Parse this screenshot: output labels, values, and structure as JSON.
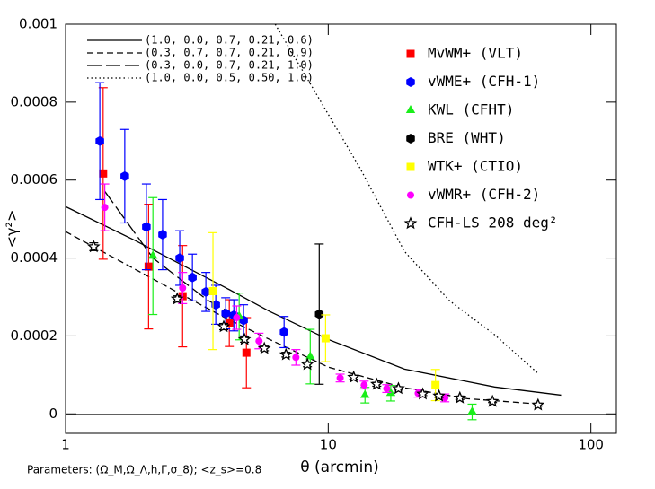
{
  "chart_data": {
    "type": "scatter",
    "x_label": "θ (arcmin)",
    "y_label": "<γ²>",
    "note": "Parameters: (Ω_M,Ω_Λ,h,Γ,σ_8); <z_s>=0.8",
    "xscale": "log",
    "xlim": [
      1,
      125
    ],
    "xticks": [
      1,
      10,
      100
    ],
    "ylim": [
      -5e-05,
      0.001
    ],
    "yticks": [
      0,
      0.0002,
      0.0004,
      0.0006,
      0.0008,
      0.001
    ],
    "models": [
      {
        "name": "(1.0, 0.0, 0.7, 0.21, 0.6)",
        "dash": "solid",
        "x": [
          1,
          1.84,
          4.04,
          5.98,
          10,
          19.5,
          43,
          77
        ],
        "values": [
          0.000532,
          0.000445,
          0.000325,
          0.000263,
          0.000191,
          0.000115,
          6.9e-05,
          4.8e-05
        ]
      },
      {
        "name": "(0.3, 0.7, 0.7, 0.21, 0.9)",
        "dash": "short",
        "x": [
          1,
          1.84,
          2.72,
          4.04,
          5.98,
          10,
          19.5,
          33.9,
          64
        ],
        "values": [
          0.000468,
          0.000371,
          0.000309,
          0.000247,
          0.000191,
          0.00012,
          6.7e-05,
          3.9e-05,
          2.5e-05
        ]
      },
      {
        "name": "(0.3, 0.0, 0.7, 0.21, 1.0)",
        "dash": "long",
        "x": [
          1.41,
          2.15,
          3.45,
          4.73
        ],
        "values": [
          0.000571,
          0.0004,
          0.000293,
          0.000242
        ]
      },
      {
        "name": "(1.0, 0.0, 0.5, 0.50, 1.0)",
        "dash": "dotted",
        "x": [
          6.28,
          13.2,
          19.5,
          29,
          43,
          62.9
        ],
        "values": [
          0.001,
          0.000631,
          0.000417,
          0.00029,
          0.000203,
          0.000104
        ]
      }
    ],
    "series": [
      {
        "name": "MvWM+ (VLT)",
        "color": "#ff0000",
        "marker": "square",
        "x": [
          1.39,
          2.07,
          2.79,
          4.2,
          4.88
        ],
        "values": [
          0.000617,
          0.000378,
          0.000302,
          0.000233,
          0.000157
        ],
        "errors": [
          0.00022,
          0.00016,
          0.00013,
          6e-05,
          9e-05
        ]
      },
      {
        "name": "vWME+ (CFH-1)",
        "color": "#0000ff",
        "marker": "hexagon",
        "x": [
          1.35,
          1.68,
          2.03,
          2.34,
          2.72,
          3.04,
          3.42,
          3.73,
          4.07,
          4.37,
          4.76,
          6.79
        ],
        "values": [
          0.0007,
          0.00061,
          0.00048,
          0.00046,
          0.0004,
          0.00035,
          0.000313,
          0.00028,
          0.000258,
          0.000253,
          0.00024,
          0.00021
        ],
        "errors": [
          0.00015,
          0.00012,
          0.00011,
          9e-05,
          7e-05,
          6e-05,
          5e-05,
          5e-05,
          4e-05,
          4e-05,
          4e-05,
          4e-05
        ]
      },
      {
        "name": "KWL (CFHT)",
        "color": "#1aee1a",
        "marker": "triangle",
        "x": [
          2.15,
          4.58,
          8.54,
          13.8,
          17.3,
          35.3
        ],
        "values": [
          0.000405,
          0.00025,
          0.000147,
          4.8e-05,
          5.3e-05,
          5e-06
        ],
        "errors": [
          0.00015,
          6e-05,
          7e-05,
          2e-05,
          2e-05,
          2e-05
        ]
      },
      {
        "name": "BRE (WHT)",
        "color": "#000000",
        "marker": "hexagon",
        "x": [
          9.24
        ],
        "values": [
          0.000256
        ],
        "errors": [
          0.00018
        ]
      },
      {
        "name": "WTK+ (CTIO)",
        "color": "#ffff00",
        "marker": "square",
        "x": [
          3.64,
          9.77,
          25.6
        ],
        "values": [
          0.000315,
          0.000194,
          7.4e-05
        ],
        "errors": [
          0.00015,
          6e-05,
          4e-05
        ]
      },
      {
        "name": "vWMR+ (CFH-2)",
        "color": "#ff00ff",
        "marker": "circle",
        "x": [
          1.41,
          2.79,
          4.48,
          5.45,
          7.53,
          11.1,
          13.7,
          16.7,
          22,
          27.8
        ],
        "values": [
          0.00053,
          0.000323,
          0.000247,
          0.000187,
          0.000145,
          9.2e-05,
          7.4e-05,
          6.5e-05,
          5.3e-05,
          4.1e-05
        ],
        "errors": [
          6e-05,
          4e-05,
          3e-05,
          2e-05,
          2e-05,
          1e-05,
          1e-05,
          1e-05,
          1e-05,
          1e-05
        ]
      },
      {
        "name": "CFH-LS 208 deg²",
        "color": "#000000",
        "marker": "star",
        "x": [
          1.28,
          2.66,
          4.0,
          4.8,
          5.71,
          6.9,
          8.33,
          12.5,
          15.3,
          18.5,
          22.9,
          26.4,
          31.7,
          42.2,
          62.9
        ],
        "values": [
          0.000429,
          0.000295,
          0.000224,
          0.000191,
          0.000168,
          0.000152,
          0.000127,
          9.4e-05,
          7.6e-05,
          6.5e-05,
          5.1e-05,
          4.6e-05,
          4.1e-05,
          3.2e-05,
          2.3e-05
        ],
        "errors": [
          1e-05,
          8e-06,
          8e-06,
          7e-06,
          6e-06,
          6e-06,
          6e-06,
          5e-06,
          5e-06,
          4e-06,
          4e-06,
          4e-06,
          4e-06,
          3e-06,
          3e-06
        ]
      }
    ]
  }
}
